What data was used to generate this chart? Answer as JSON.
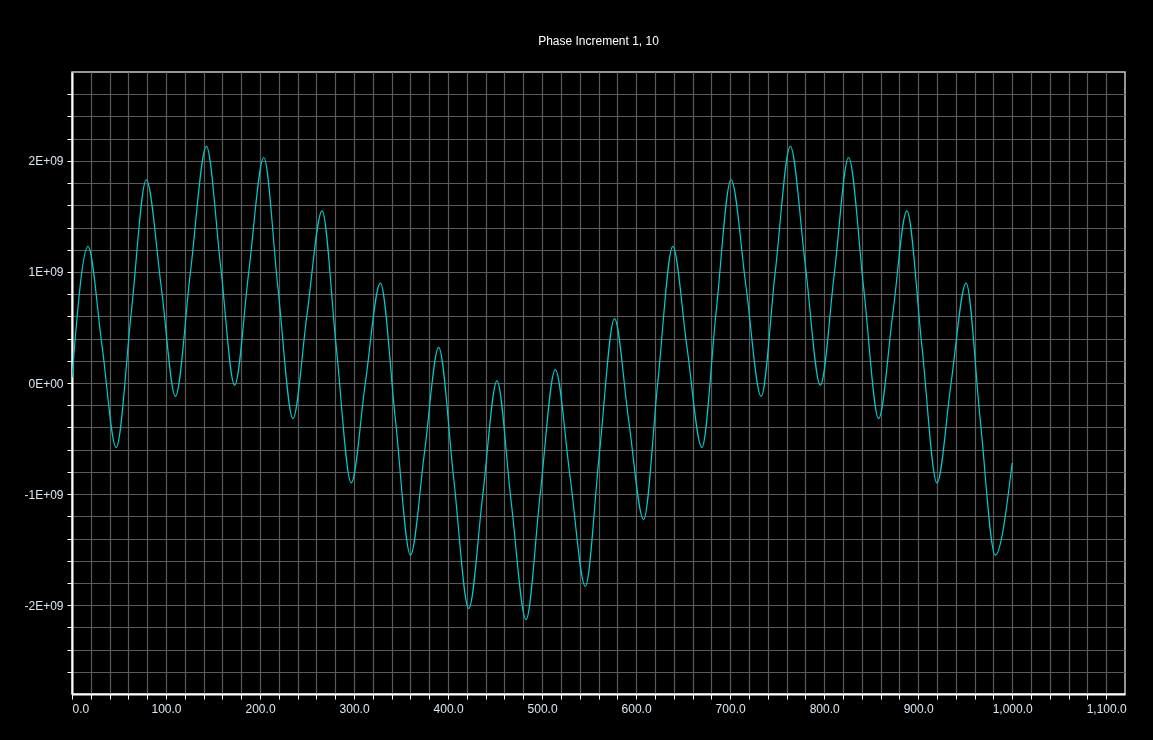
{
  "chart_data": {
    "type": "line",
    "title": "Phase Increment 1, 10",
    "x": [
      0,
      17,
      32,
      47,
      63,
      79,
      95,
      110,
      126,
      143,
      158,
      173,
      188,
      204,
      219,
      235,
      250,
      266,
      281,
      297,
      312,
      328,
      344,
      360,
      375,
      390,
      406,
      422,
      437,
      452,
      467,
      483,
      498,
      514,
      530,
      546,
      561,
      577,
      592,
      608,
      623,
      639,
      654,
      670,
      685,
      701,
      717,
      733,
      748,
      764,
      780,
      796,
      811,
      826,
      842,
      858,
      873,
      888,
      904,
      920,
      935,
      951,
      966,
      982,
      1000
    ],
    "series": [
      {
        "color": "#00cccc",
        "values": [
          50000000.0,
          1230000000.0,
          330000000.0,
          -580000000.0,
          630000000.0,
          1830000000.0,
          860000000.0,
          -120000000.0,
          1000000000.0,
          2130000000.0,
          1060000000.0,
          -20000000.0,
          1000000000.0,
          2030000000.0,
          860000000.0,
          -320000000.0,
          620000000.0,
          1550000000.0,
          330000000.0,
          -900000000.0,
          0,
          900000000.0,
          -330000000.0,
          -1550000000.0,
          -620000000.0,
          320000000.0,
          -860000000.0,
          -2030000000.0,
          -1000000000.0,
          20000000.0,
          -1060000000.0,
          -2130000000.0,
          -1000000000.0,
          120000000.0,
          -860000000.0,
          -1830000000.0,
          -630000000.0,
          580000000.0,
          -330000000.0,
          -1230000000.0,
          0,
          1230000000.0,
          330000000.0,
          -580000000.0,
          630000000.0,
          1830000000.0,
          860000000.0,
          -120000000.0,
          1000000000.0,
          2130000000.0,
          1060000000.0,
          -20000000.0,
          1000000000.0,
          2030000000.0,
          860000000.0,
          -320000000.0,
          620000000.0,
          1550000000.0,
          330000000.0,
          -900000000.0,
          0,
          900000000.0,
          -330000000.0,
          -1550000000.0,
          -720000000.0
        ]
      }
    ],
    "xlim": [
      0,
      1120
    ],
    "xticks": [
      {
        "value": 0,
        "label": "0.0"
      },
      {
        "value": 20,
        "label": null
      },
      {
        "value": 40,
        "label": null
      },
      {
        "value": 60,
        "label": null
      },
      {
        "value": 80,
        "label": null
      },
      {
        "value": 100,
        "label": "100.0"
      },
      {
        "value": 120,
        "label": null
      },
      {
        "value": 140,
        "label": null
      },
      {
        "value": 160,
        "label": null
      },
      {
        "value": 180,
        "label": null
      },
      {
        "value": 200,
        "label": "200.0"
      },
      {
        "value": 220,
        "label": null
      },
      {
        "value": 240,
        "label": null
      },
      {
        "value": 260,
        "label": null
      },
      {
        "value": 280,
        "label": null
      },
      {
        "value": 300,
        "label": "300.0"
      },
      {
        "value": 320,
        "label": null
      },
      {
        "value": 340,
        "label": null
      },
      {
        "value": 360,
        "label": null
      },
      {
        "value": 380,
        "label": null
      },
      {
        "value": 400,
        "label": "400.0"
      },
      {
        "value": 420,
        "label": null
      },
      {
        "value": 440,
        "label": null
      },
      {
        "value": 460,
        "label": null
      },
      {
        "value": 480,
        "label": null
      },
      {
        "value": 500,
        "label": "500.0"
      },
      {
        "value": 520,
        "label": null
      },
      {
        "value": 540,
        "label": null
      },
      {
        "value": 560,
        "label": null
      },
      {
        "value": 580,
        "label": null
      },
      {
        "value": 600,
        "label": "600.0"
      },
      {
        "value": 620,
        "label": null
      },
      {
        "value": 640,
        "label": null
      },
      {
        "value": 660,
        "label": null
      },
      {
        "value": 680,
        "label": null
      },
      {
        "value": 700,
        "label": "700.0"
      },
      {
        "value": 720,
        "label": null
      },
      {
        "value": 740,
        "label": null
      },
      {
        "value": 760,
        "label": null
      },
      {
        "value": 780,
        "label": null
      },
      {
        "value": 800,
        "label": "800.0"
      },
      {
        "value": 820,
        "label": null
      },
      {
        "value": 840,
        "label": null
      },
      {
        "value": 860,
        "label": null
      },
      {
        "value": 880,
        "label": null
      },
      {
        "value": 900,
        "label": "900.0"
      },
      {
        "value": 920,
        "label": null
      },
      {
        "value": 940,
        "label": null
      },
      {
        "value": 960,
        "label": null
      },
      {
        "value": 980,
        "label": null
      },
      {
        "value": 1000,
        "label": "1,000.0"
      },
      {
        "value": 1020,
        "label": null
      },
      {
        "value": 1040,
        "label": null
      },
      {
        "value": 1060,
        "label": null
      },
      {
        "value": 1080,
        "label": null
      },
      {
        "value": 1100,
        "label": "1,100.0"
      }
    ],
    "ylim": [
      -2800000000.0,
      2800000000.0
    ],
    "yticks": [
      {
        "value": -2600000000.0,
        "label": null
      },
      {
        "value": -2400000000.0,
        "label": null
      },
      {
        "value": -2200000000.0,
        "label": null
      },
      {
        "value": -2000000000.0,
        "label": "-2E+09"
      },
      {
        "value": -1800000000.0,
        "label": null
      },
      {
        "value": -1600000000.0,
        "label": null
      },
      {
        "value": -1400000000.0,
        "label": null
      },
      {
        "value": -1200000000.0,
        "label": null
      },
      {
        "value": -1000000000.0,
        "label": "-1E+09"
      },
      {
        "value": -800000000.0,
        "label": null
      },
      {
        "value": -600000000.0,
        "label": null
      },
      {
        "value": -400000000.0,
        "label": null
      },
      {
        "value": -200000000.0,
        "label": null
      },
      {
        "value": 0,
        "label": "0E+00"
      },
      {
        "value": 200000000.0,
        "label": null
      },
      {
        "value": 400000000.0,
        "label": null
      },
      {
        "value": 600000000.0,
        "label": null
      },
      {
        "value": 800000000.0,
        "label": null
      },
      {
        "value": 1000000000.0,
        "label": "1E+09"
      },
      {
        "value": 1200000000.0,
        "label": null
      },
      {
        "value": 1400000000.0,
        "label": null
      },
      {
        "value": 1600000000.0,
        "label": null
      },
      {
        "value": 1800000000.0,
        "label": null
      },
      {
        "value": 2000000000.0,
        "label": "2E+09"
      },
      {
        "value": 2200000000.0,
        "label": null
      },
      {
        "value": 2400000000.0,
        "label": null
      },
      {
        "value": 2600000000.0,
        "label": null
      }
    ],
    "grid": true
  }
}
